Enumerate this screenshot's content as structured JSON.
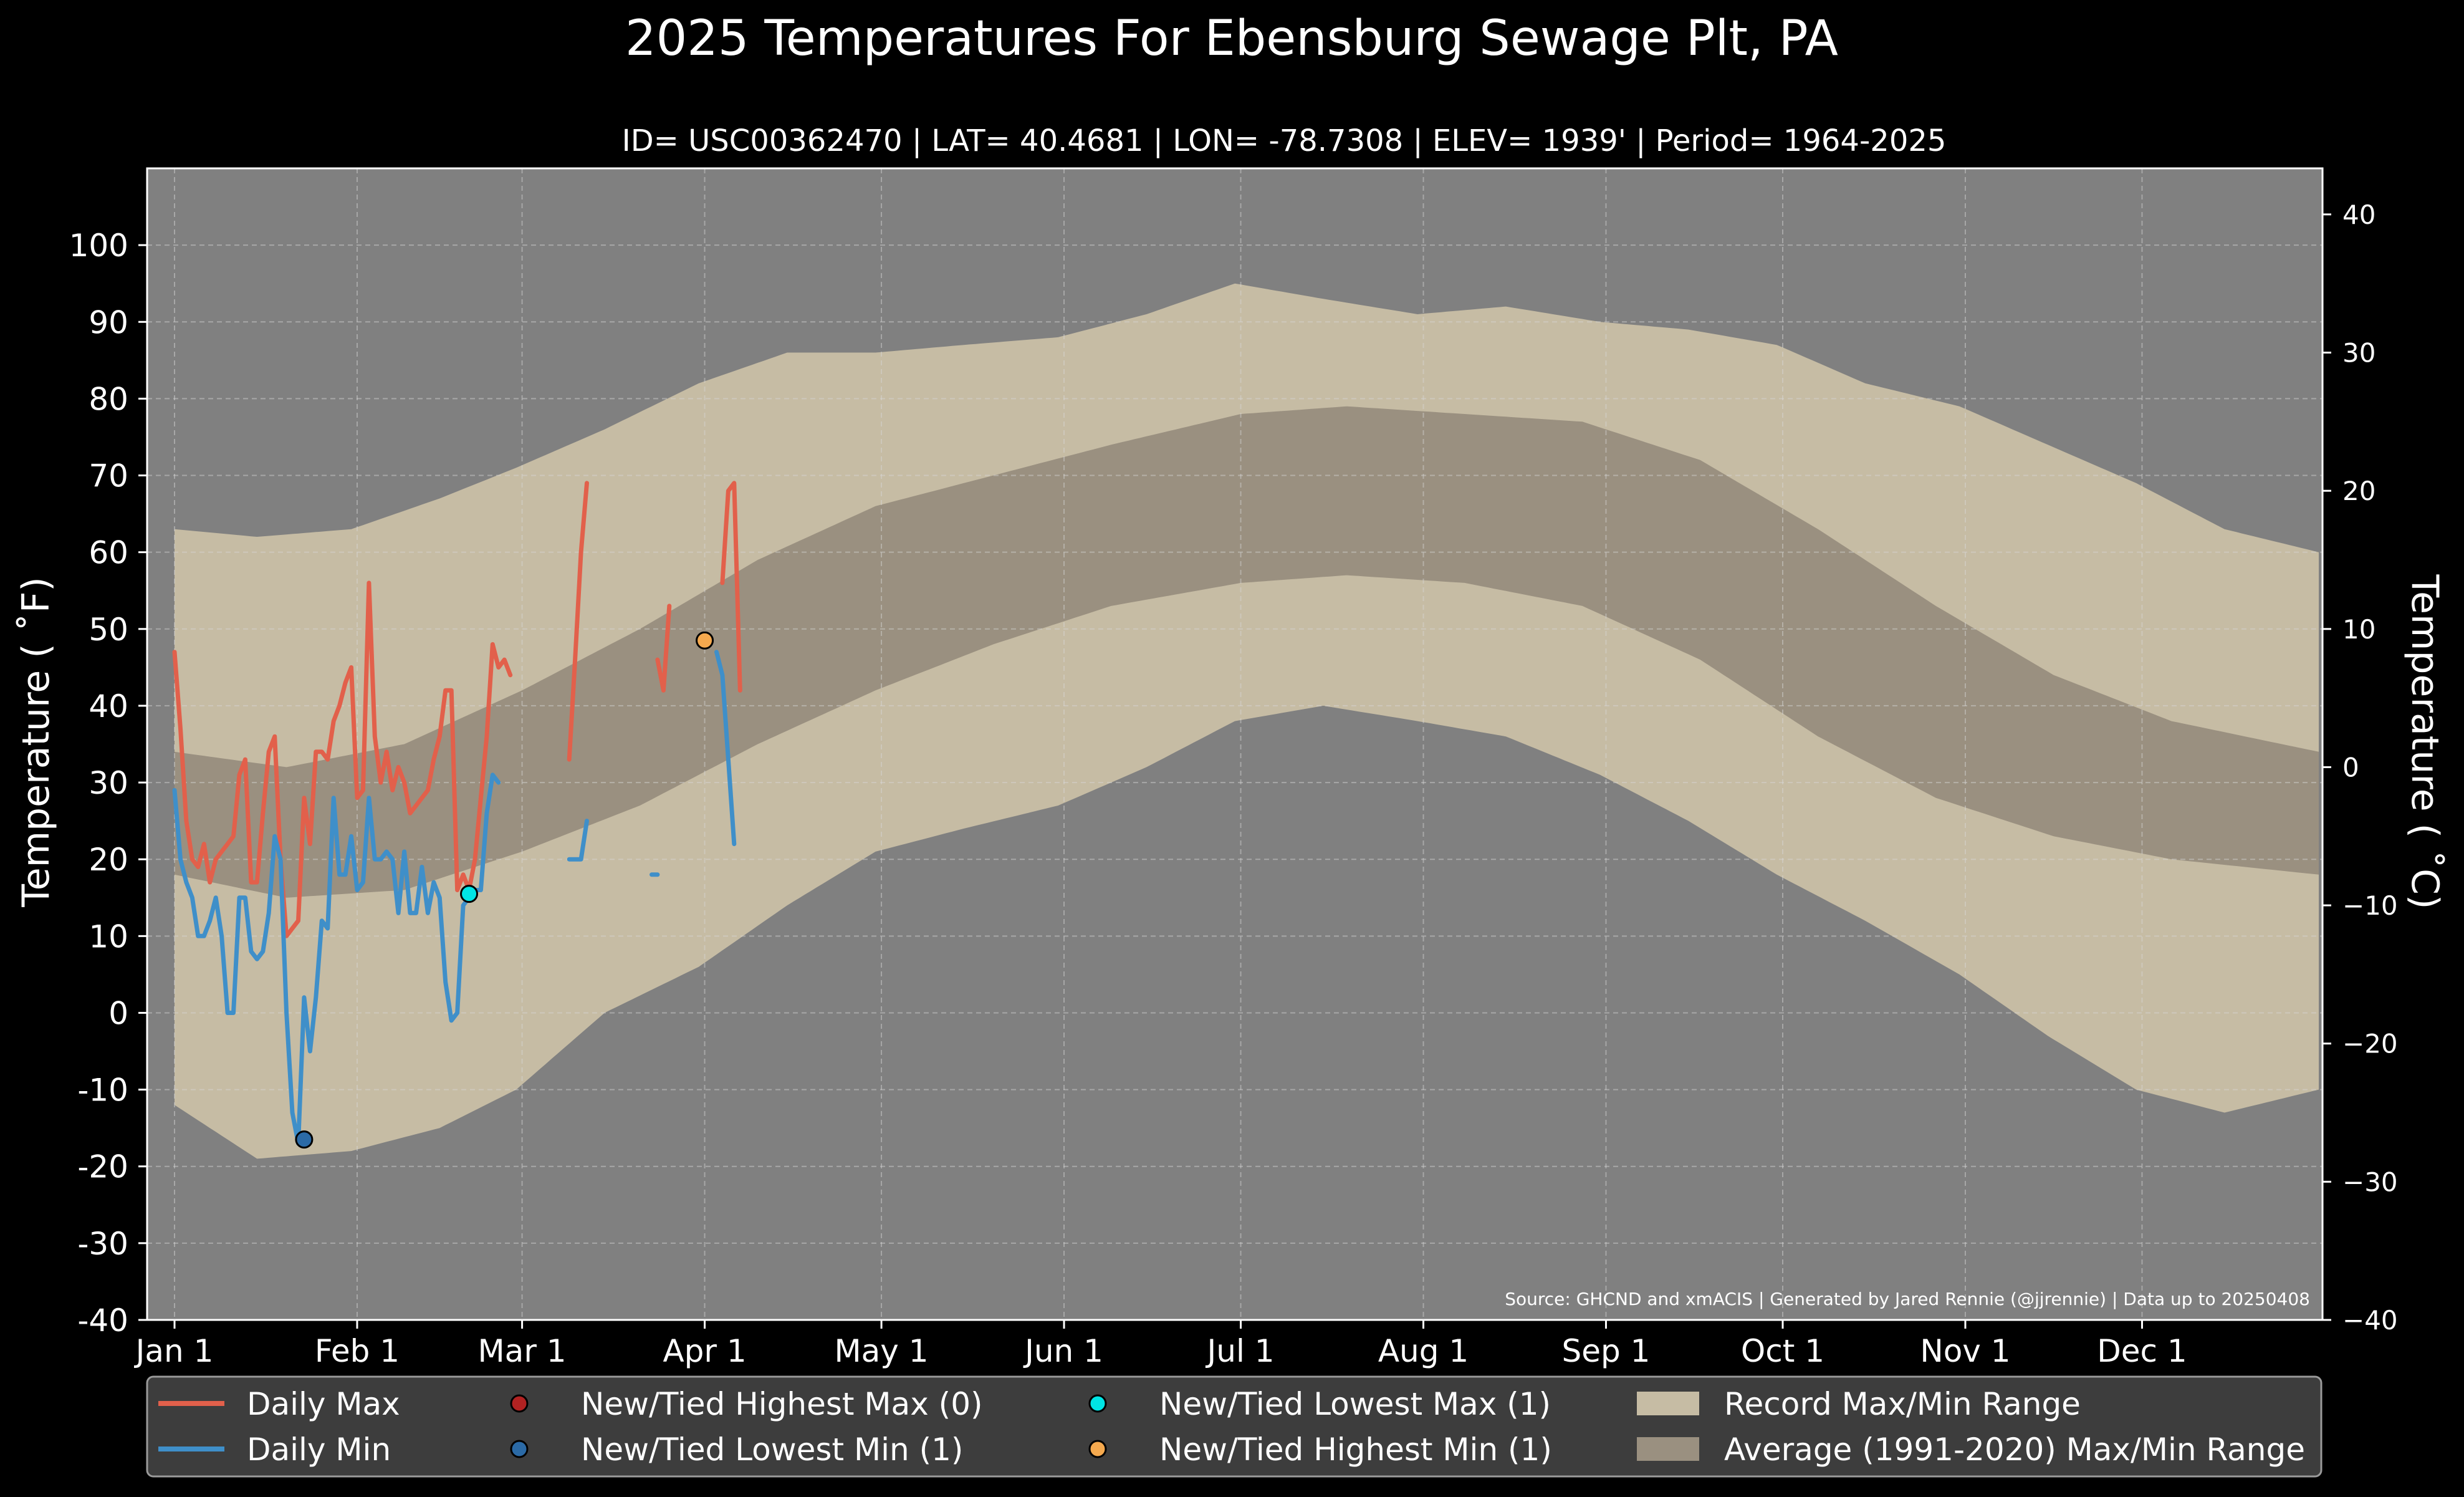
{
  "chart_data": {
    "type": "area",
    "title": "2025 Temperatures For Ebensburg Sewage Plt, PA",
    "subtitle": "ID= USC00362470 | LAT= 40.4681 | LON= -78.7308 | ELEV= 1939' | Period= 1964-2025",
    "ylabel_left": "Temperature ( ˚F)",
    "ylabel_right": "Temperature ( ˚C)",
    "xlabel": "",
    "ylim": [
      -40,
      110
    ],
    "y_ticks_f": [
      "-40",
      "-30",
      "-20",
      "-10",
      "0",
      "10",
      "20",
      "30",
      "40",
      "50",
      "60",
      "70",
      "80",
      "90",
      "100"
    ],
    "y_ticks_c": [
      "−40",
      "−30",
      "−20",
      "−10",
      "0",
      "10",
      "20",
      "30",
      "40"
    ],
    "x_ticks": [
      "Jan 1",
      "Feb 1",
      "Mar 1",
      "Apr 1",
      "May 1",
      "Jun 1",
      "Jul 1",
      "Aug 1",
      "Sep 1",
      "Oct 1",
      "Nov 1",
      "Dec 1"
    ],
    "grid": true,
    "source_note": "Source: GHCND and xmACIS | Generated by Jared Rennie (@jjrennie) | Data up to 20250408",
    "record_range": {
      "day": [
        1,
        15,
        31,
        46,
        59,
        74,
        90,
        105,
        120,
        135,
        151,
        166,
        181,
        196,
        212,
        227,
        243,
        258,
        273,
        288,
        304,
        319,
        334,
        349,
        365
      ],
      "max": [
        63,
        62,
        63,
        67,
        71,
        76,
        82,
        86,
        86,
        87,
        88,
        91,
        95,
        93,
        91,
        92,
        90,
        89,
        87,
        82,
        79,
        74,
        69,
        63,
        60
      ],
      "min": [
        -12,
        -19,
        -18,
        -15,
        -10,
        0,
        6,
        14,
        21,
        24,
        27,
        32,
        38,
        40,
        38,
        36,
        31,
        25,
        18,
        12,
        5,
        -3,
        -10,
        -13,
        -10
      ]
    },
    "normal_range": {
      "day": [
        1,
        20,
        40,
        60,
        80,
        100,
        120,
        140,
        160,
        182,
        200,
        220,
        240,
        260,
        280,
        300,
        320,
        340,
        365
      ],
      "max": [
        34,
        32,
        35,
        42,
        50,
        59,
        66,
        70,
        74,
        78,
        79,
        78,
        77,
        72,
        63,
        53,
        44,
        38,
        34
      ],
      "min": [
        18,
        15,
        16,
        21,
        27,
        35,
        42,
        48,
        53,
        56,
        57,
        56,
        53,
        46,
        36,
        28,
        23,
        20,
        18
      ]
    },
    "series": [
      {
        "name": "Daily Max",
        "color": "#e2604b",
        "segments": [
          {
            "start_day": 1,
            "values": [
              47,
              37,
              25,
              20,
              19,
              22,
              17,
              20,
              21,
              22,
              23,
              31,
              33,
              17,
              17,
              26,
              34,
              36,
              20,
              10,
              11,
              12,
              28,
              22,
              34,
              34,
              33,
              38,
              40,
              43,
              45,
              28,
              29,
              56,
              36,
              30,
              34,
              29,
              32,
              30,
              26,
              27,
              28,
              29,
              33,
              36,
              42,
              42,
              16,
              18,
              16,
              20,
              28,
              36,
              48,
              45,
              46,
              44
            ]
          },
          {
            "start_day": 68,
            "values": [
              33,
              46,
              60,
              69
            ]
          },
          {
            "start_day": 83,
            "values": [
              46,
              42,
              53
            ]
          },
          {
            "start_day": 94,
            "values": [
              56,
              68,
              69,
              42
            ]
          }
        ]
      },
      {
        "name": "Daily Min",
        "color": "#3f8fc9",
        "segments": [
          {
            "start_day": 1,
            "values": [
              29,
              20,
              17,
              15,
              10,
              10,
              12,
              15,
              10,
              0,
              0,
              15,
              15,
              8,
              7,
              8,
              13,
              23,
              20,
              0,
              -13,
              -17,
              2,
              -5,
              2,
              12,
              11,
              28,
              18,
              18,
              23,
              16,
              17,
              28,
              20,
              20,
              21,
              20,
              13,
              21,
              13,
              13,
              19,
              13,
              17,
              15,
              4,
              -1,
              0,
              14,
              15,
              16,
              16,
              26,
              31,
              30
            ]
          },
          {
            "start_day": 68,
            "values": [
              20,
              20,
              20,
              25
            ]
          },
          {
            "start_day": 82,
            "values": [
              18,
              18
            ]
          },
          {
            "start_day": 93,
            "values": [
              47,
              44,
              33,
              22
            ]
          }
        ]
      }
    ],
    "record_markers": [
      {
        "type": "New/Tied Lowest Min",
        "day": 23,
        "value": -16.5,
        "color": "#2b6aa6"
      },
      {
        "type": "New/Tied Lowest Max",
        "day": 51,
        "value": 15.5,
        "color": "#00e5e5"
      },
      {
        "type": "New/Tied Highest Min",
        "day": 91,
        "value": 48.5,
        "color": "#f5a94e"
      }
    ],
    "legend": {
      "placement": "bottom",
      "items": [
        {
          "label": "Daily Max",
          "kind": "line",
          "color": "#e2604b"
        },
        {
          "label": "Daily Min",
          "kind": "line",
          "color": "#3f8fc9"
        },
        {
          "label": "New/Tied Highest Max (0)",
          "kind": "dot",
          "color": "#b22222"
        },
        {
          "label": "New/Tied Lowest Min (1)",
          "kind": "dot",
          "color": "#2b6aa6"
        },
        {
          "label": "New/Tied Lowest Max (1)",
          "kind": "dot",
          "color": "#00e5e5"
        },
        {
          "label": "New/Tied Highest Min (1)",
          "kind": "dot",
          "color": "#f5a94e"
        },
        {
          "label": "Record Max/Min Range",
          "kind": "patch",
          "color": "#c6bca4"
        },
        {
          "label": "Average (1991-2020) Max/Min Range",
          "kind": "patch",
          "color": "#9a9080"
        }
      ]
    },
    "colors": {
      "background": "#000000",
      "plot_background": "#808080",
      "record_fill": "#c6bca4",
      "normal_fill": "#9a9080",
      "text": "#ffffff"
    }
  }
}
